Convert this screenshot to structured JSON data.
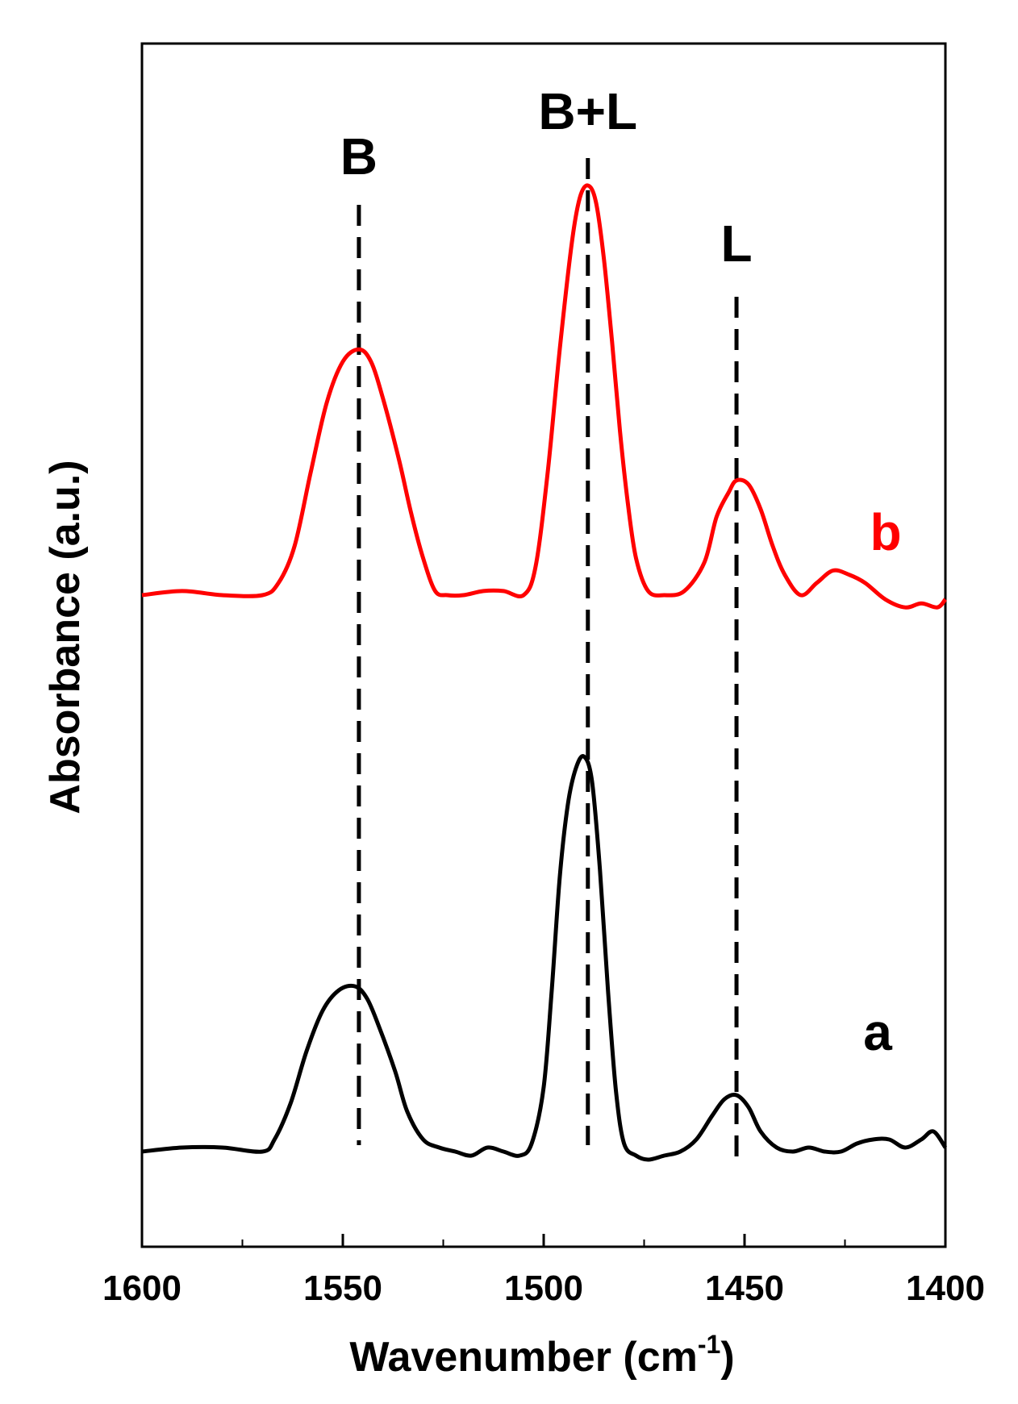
{
  "chart_data": {
    "type": "line",
    "title": "",
    "xlabel": "Wavenumber (cm",
    "xlabel_sup": "-1",
    "xlabel_close": ")",
    "ylabel": "Absorbance (a.u.)",
    "xlim": [
      1600,
      1400
    ],
    "x_reversed": true,
    "y_ticks_shown": false,
    "grid": false,
    "x_ticks": [
      1600,
      1550,
      1500,
      1450,
      1400
    ],
    "x_tick_labels": [
      "1600",
      "1550",
      "1500",
      "1450",
      "1400"
    ],
    "annotations": [
      {
        "label": "B",
        "x": 1546
      },
      {
        "label": "B+L",
        "x": 1489
      },
      {
        "label": "L",
        "x": 1452
      }
    ],
    "series": [
      {
        "name": "b",
        "color": "#ff0000",
        "x": [
          1600,
          1590,
          1580,
          1570,
          1566,
          1562,
          1558,
          1554,
          1550,
          1546,
          1543,
          1540,
          1536,
          1533,
          1530,
          1527,
          1524,
          1520,
          1515,
          1510,
          1505,
          1502,
          1499,
          1496,
          1493,
          1491,
          1489,
          1487,
          1485,
          1483,
          1481,
          1479,
          1477,
          1474,
          1470,
          1465,
          1460,
          1457,
          1454,
          1452,
          1449,
          1446,
          1443,
          1440,
          1436,
          1432,
          1428,
          1424,
          1420,
          1415,
          1410,
          1406,
          1402,
          1400
        ],
        "y": [
          0.0,
          0.01,
          0.0,
          0.0,
          0.03,
          0.12,
          0.3,
          0.47,
          0.57,
          0.6,
          0.57,
          0.48,
          0.33,
          0.2,
          0.09,
          0.01,
          0.0,
          0.0,
          0.01,
          0.01,
          0.0,
          0.07,
          0.3,
          0.6,
          0.86,
          0.97,
          1.0,
          0.96,
          0.82,
          0.62,
          0.4,
          0.22,
          0.09,
          0.01,
          0.0,
          0.01,
          0.08,
          0.19,
          0.25,
          0.28,
          0.27,
          0.21,
          0.12,
          0.05,
          0.0,
          0.03,
          0.06,
          0.05,
          0.03,
          -0.01,
          -0.03,
          -0.02,
          -0.03,
          -0.01
        ]
      },
      {
        "name": "a",
        "color": "#000000",
        "x": [
          1600,
          1590,
          1580,
          1570,
          1567,
          1563,
          1559,
          1555,
          1551,
          1547,
          1544,
          1541,
          1537,
          1534,
          1530,
          1526,
          1522,
          1518,
          1514,
          1510,
          1506,
          1503,
          1500,
          1498,
          1496,
          1494,
          1492,
          1490,
          1488,
          1486,
          1484,
          1482,
          1480,
          1477,
          1474,
          1470,
          1466,
          1462,
          1458,
          1455,
          1452,
          1449,
          1446,
          1442,
          1438,
          1434,
          1430,
          1426,
          1422,
          1418,
          1414,
          1410,
          1406,
          1403,
          1400
        ],
        "y": [
          0.0,
          0.01,
          0.01,
          0.0,
          0.03,
          0.12,
          0.25,
          0.35,
          0.4,
          0.41,
          0.38,
          0.31,
          0.2,
          0.1,
          0.03,
          0.01,
          0.0,
          -0.01,
          0.01,
          0.0,
          -0.01,
          0.02,
          0.16,
          0.4,
          0.68,
          0.86,
          0.95,
          0.98,
          0.92,
          0.7,
          0.4,
          0.15,
          0.02,
          -0.01,
          -0.02,
          -0.01,
          0.0,
          0.03,
          0.09,
          0.13,
          0.14,
          0.11,
          0.05,
          0.01,
          0.0,
          0.01,
          0.0,
          0.0,
          0.02,
          0.03,
          0.03,
          0.01,
          0.03,
          0.05,
          0.01
        ]
      }
    ]
  }
}
